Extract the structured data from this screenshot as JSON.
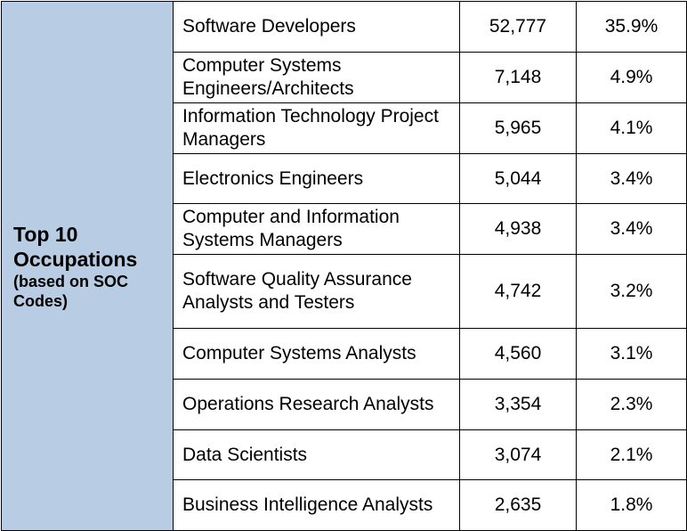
{
  "header": {
    "title": "Top 10 Occupations",
    "subtitle": "(based on SOC Codes)"
  },
  "rows": [
    {
      "occupation": "Software Developers",
      "count": "52,777",
      "percent": "35.9%"
    },
    {
      "occupation": "Computer Systems Engineers/Architects",
      "count": "7,148",
      "percent": "4.9%"
    },
    {
      "occupation": "Information Technology Project Managers",
      "count": "5,965",
      "percent": "4.1%"
    },
    {
      "occupation": "Electronics Engineers",
      "count": "5,044",
      "percent": "3.4%"
    },
    {
      "occupation": "Computer and Information Systems Managers",
      "count": "4,938",
      "percent": "3.4%"
    },
    {
      "occupation": "Software Quality Assurance Analysts and Testers",
      "count": "4,742",
      "percent": "3.2%"
    },
    {
      "occupation": "Computer Systems Analysts",
      "count": "4,560",
      "percent": "3.1%"
    },
    {
      "occupation": "Operations Research Analysts",
      "count": "3,354",
      "percent": "2.3%"
    },
    {
      "occupation": "Data Scientists",
      "count": "3,074",
      "percent": "2.1%"
    },
    {
      "occupation": "Business Intelligence Analysts",
      "count": "2,635",
      "percent": "1.8%"
    }
  ],
  "colors": {
    "header_background": "#b8cce4",
    "border": "#000000"
  }
}
